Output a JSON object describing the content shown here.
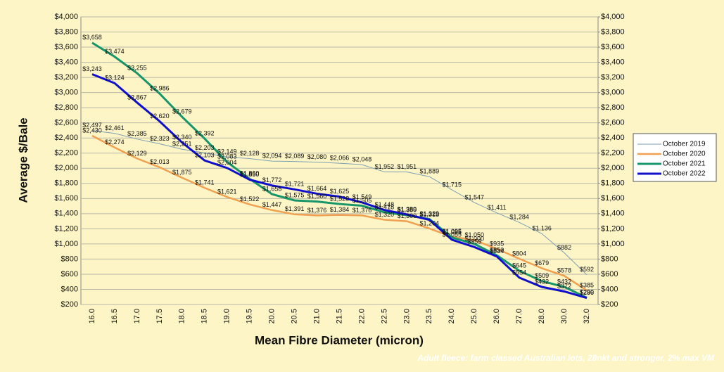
{
  "chart_data": {
    "type": "line",
    "x_label": "Mean Fibre Diameter (micron)",
    "y_label": "Average $/Bale",
    "footnote": "Adult fleece: farm classed Australian lots, 28nkt and stronger, 2% max VM",
    "grid": true,
    "legend": "right",
    "categories": [
      "16.0",
      "16.5",
      "17.0",
      "17.5",
      "18.0",
      "18.5",
      "19.0",
      "19.5",
      "20.0",
      "20.5",
      "21.0",
      "21.5",
      "22.0",
      "22.5",
      "23.0",
      "23.5",
      "24.0",
      "25.0",
      "26.0",
      "27.0",
      "28.0",
      "30.0",
      "32.0"
    ],
    "ylim": [
      200,
      4000
    ],
    "yticks": [
      {
        "value": 200,
        "label": "$200"
      },
      {
        "value": 400,
        "label": "$400"
      },
      {
        "value": 600,
        "label": "$600"
      },
      {
        "value": 800,
        "label": "$800"
      },
      {
        "value": 1000,
        "label": "$1,000"
      },
      {
        "value": 1200,
        "label": "$1,200"
      },
      {
        "value": 1400,
        "label": "$1,400"
      },
      {
        "value": 1600,
        "label": "$1,600"
      },
      {
        "value": 1800,
        "label": "$1,800"
      },
      {
        "value": 2000,
        "label": "$2,000"
      },
      {
        "value": 2200,
        "label": "$2,200"
      },
      {
        "value": 2400,
        "label": "$2,400"
      },
      {
        "value": 2600,
        "label": "$2,600"
      },
      {
        "value": 2800,
        "label": "$2,800"
      },
      {
        "value": 3000,
        "label": "$3,000"
      },
      {
        "value": 3200,
        "label": "$3,200"
      },
      {
        "value": 3400,
        "label": "$3,400"
      },
      {
        "value": 3600,
        "label": "$3,600"
      },
      {
        "value": 3800,
        "label": "$3,800"
      },
      {
        "value": 4000,
        "label": "$4,000"
      }
    ],
    "y2lim": [
      200,
      4000
    ],
    "y2ticks": [
      {
        "value": 200,
        "label": "$200"
      },
      {
        "value": 400,
        "label": "$400"
      },
      {
        "value": 600,
        "label": "$600"
      },
      {
        "value": 800,
        "label": "$800"
      },
      {
        "value": 1000,
        "label": "$1,000"
      },
      {
        "value": 1200,
        "label": "$1,200"
      },
      {
        "value": 1400,
        "label": "$1,400"
      },
      {
        "value": 1600,
        "label": "$1,600"
      },
      {
        "value": 1800,
        "label": "$1,800"
      },
      {
        "value": 2000,
        "label": "$2,000"
      },
      {
        "value": 2200,
        "label": "$2,200"
      },
      {
        "value": 2400,
        "label": "$2,400"
      },
      {
        "value": 2600,
        "label": "$2,600"
      },
      {
        "value": 2800,
        "label": "$2,800"
      },
      {
        "value": 3000,
        "label": "$3,000"
      },
      {
        "value": 3200,
        "label": "$3,200"
      },
      {
        "value": 3400,
        "label": "$3,400"
      },
      {
        "value": 3600,
        "label": "$3,600"
      },
      {
        "value": 3800,
        "label": "$3,800"
      },
      {
        "value": 4000,
        "label": "$4,000"
      }
    ],
    "series": [
      {
        "name": "October 2019",
        "color": "#7f9fb3",
        "width": 1,
        "values": [
          2497,
          2461,
          2385,
          2323,
          2251,
          2203,
          2149,
          2128,
          2094,
          2089,
          2080,
          2066,
          2048,
          1952,
          1951,
          1889,
          1715,
          1547,
          1411,
          1284,
          1136,
          882,
          592
        ],
        "value_labels": [
          "$2,497",
          "$2,461",
          "$2,385",
          "$2,323",
          "$2,251",
          "$2,203",
          "$2,149",
          "$2,128",
          "$2,094",
          "$2,089",
          "$2,080",
          "$2,066",
          "$2,048",
          "$1,952",
          "$1,951",
          "$1,889",
          "$1,715",
          "$1,547",
          "$1,411",
          "$1,284",
          "$1,136",
          "$882",
          "$592"
        ]
      },
      {
        "name": "October 2020",
        "color": "#f0a050",
        "width": 2.5,
        "values": [
          2430,
          2274,
          2129,
          2013,
          1875,
          1741,
          1621,
          1522,
          1447,
          1391,
          1376,
          1384,
          1376,
          1320,
          1300,
          1204,
          1095,
          1050,
          935,
          804,
          679,
          578,
          385
        ],
        "value_labels": [
          "$2,430",
          "$2,274",
          "$2,129",
          "$2,013",
          "$1,875",
          "$1,741",
          "$1,621",
          "$1,522",
          "$1,447",
          "$1,391",
          "$1,376",
          "$1,384",
          "$1,376",
          "$1,320",
          "$1,300",
          "$1,204",
          "$1,095",
          "$1,050",
          "$935",
          "$804",
          "$679",
          "$578",
          "$385"
        ]
      },
      {
        "name": "October 2021",
        "color": "#17966a",
        "width": 3,
        "values": [
          3658,
          3474,
          3255,
          2986,
          2679,
          2392,
          2083,
          1860,
          1658,
          1575,
          1560,
          1528,
          1505,
          1418,
          1380,
          1329,
          1085,
          1000,
          850,
          645,
          509,
          432,
          290
        ],
        "value_labels": [
          "$3,658",
          "$3,474",
          "$3,255",
          "$2,986",
          "$2,679",
          "$2,392",
          "$2,083",
          "$1,860",
          "$1,658",
          "$1,575",
          "$1,560",
          "$1,528",
          "$1,505",
          "$1,418",
          "$1,380",
          "$1,329",
          "$1,085",
          "$1,000",
          "$850",
          "$645",
          "$509",
          "$432",
          "$290"
        ]
      },
      {
        "name": "October 2022",
        "color": "#1010cc",
        "width": 3,
        "values": [
          3243,
          3124,
          2867,
          2620,
          2340,
          2103,
          2004,
          1850,
          1772,
          1721,
          1664,
          1625,
          1549,
          1448,
          1389,
          1318,
          1055,
          959,
          834,
          554,
          432,
          372,
          286
        ],
        "value_labels": [
          "$3,243",
          "$3,124",
          "$2,867",
          "$2,620",
          "$2,340",
          "$2,103",
          "$2,004",
          "$1,850",
          "$1,772",
          "$1,721",
          "$1,664",
          "$1,625",
          "$1,549",
          "$1,448",
          "$1,389",
          "$1,318",
          "$1,055",
          "$959",
          "$834",
          "$554",
          "$432",
          "$372",
          "$286"
        ]
      }
    ]
  }
}
